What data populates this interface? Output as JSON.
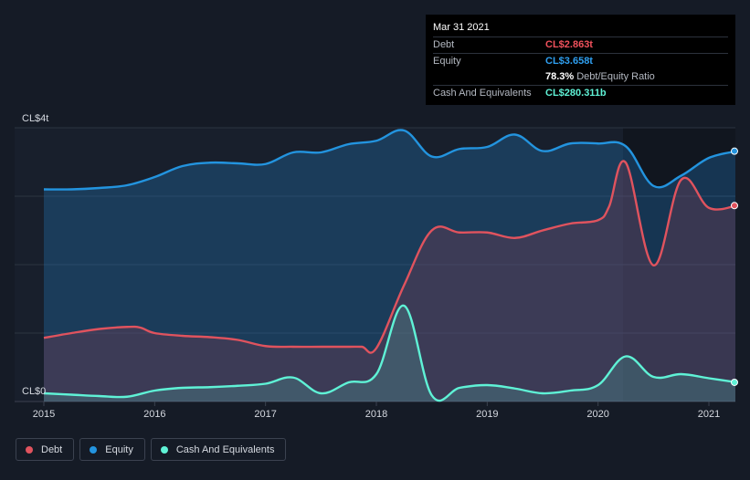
{
  "chart_data": {
    "type": "area",
    "y_top_label": "CL$4t",
    "y_bottom_label": "CL$0",
    "x_ticks": [
      "2015",
      "2016",
      "2017",
      "2018",
      "2019",
      "2020",
      "2021"
    ],
    "x_range": [
      2015.0,
      2021.25
    ],
    "y_range": [
      0,
      4000
    ],
    "grid": true,
    "legend_placement": "bottom-left",
    "series": [
      {
        "name": "Debt",
        "key": "debt",
        "color": "#e0535e",
        "x": [
          2015.0,
          2015.25,
          2015.5,
          2015.75,
          2015.87,
          2016.0,
          2016.25,
          2016.5,
          2016.75,
          2017.0,
          2017.25,
          2017.5,
          2017.75,
          2017.87,
          2018.0,
          2018.25,
          2018.5,
          2018.75,
          2019.0,
          2019.25,
          2019.5,
          2019.75,
          2020.0,
          2020.1,
          2020.25,
          2020.5,
          2020.75,
          2021.0,
          2021.25
        ],
        "y": [
          930,
          1000,
          1060,
          1090,
          1080,
          1000,
          960,
          940,
          900,
          810,
          800,
          800,
          800,
          800,
          780,
          1700,
          2500,
          2470,
          2470,
          2390,
          2500,
          2600,
          2650,
          2850,
          3490,
          1990,
          3240,
          2830,
          2863
        ]
      },
      {
        "name": "Equity",
        "key": "equity",
        "color": "#2394df",
        "x": [
          2015.0,
          2015.25,
          2015.5,
          2015.75,
          2016.0,
          2016.25,
          2016.5,
          2016.75,
          2017.0,
          2017.25,
          2017.5,
          2017.75,
          2018.0,
          2018.25,
          2018.5,
          2018.75,
          2019.0,
          2019.25,
          2019.5,
          2019.75,
          2020.0,
          2020.25,
          2020.5,
          2020.75,
          2021.0,
          2021.25
        ],
        "y": [
          3100,
          3100,
          3120,
          3160,
          3280,
          3440,
          3490,
          3480,
          3470,
          3640,
          3640,
          3760,
          3810,
          3960,
          3580,
          3690,
          3720,
          3900,
          3660,
          3770,
          3770,
          3730,
          3150,
          3300,
          3560,
          3658
        ]
      },
      {
        "name": "Cash And Equivalents",
        "key": "cash",
        "color": "#5ff2d6",
        "x": [
          2015.0,
          2015.25,
          2015.5,
          2015.75,
          2016.0,
          2016.25,
          2016.5,
          2016.75,
          2017.0,
          2017.25,
          2017.5,
          2017.75,
          2018.0,
          2018.25,
          2018.5,
          2018.75,
          2019.0,
          2019.25,
          2019.5,
          2019.75,
          2020.0,
          2020.25,
          2020.5,
          2020.75,
          2021.0,
          2021.25
        ],
        "y": [
          120,
          100,
          80,
          70,
          160,
          200,
          210,
          230,
          260,
          350,
          120,
          280,
          400,
          1400,
          90,
          200,
          240,
          190,
          120,
          160,
          240,
          660,
          360,
          400,
          340,
          280.311
        ]
      }
    ]
  },
  "tooltip": {
    "date": "Mar 31 2021",
    "debt_label": "Debt",
    "debt_value": "CL$2.863t",
    "equity_label": "Equity",
    "equity_value": "CL$3.658t",
    "ratio_value": "78.3%",
    "ratio_text": "Debt/Equity Ratio",
    "cash_label": "Cash And Equivalents",
    "cash_value": "CL$280.311b"
  },
  "legend": [
    {
      "label": "Debt",
      "color": "#e0535e"
    },
    {
      "label": "Equity",
      "color": "#2394df"
    },
    {
      "label": "Cash And Equivalents",
      "color": "#5ff2d6"
    }
  ]
}
